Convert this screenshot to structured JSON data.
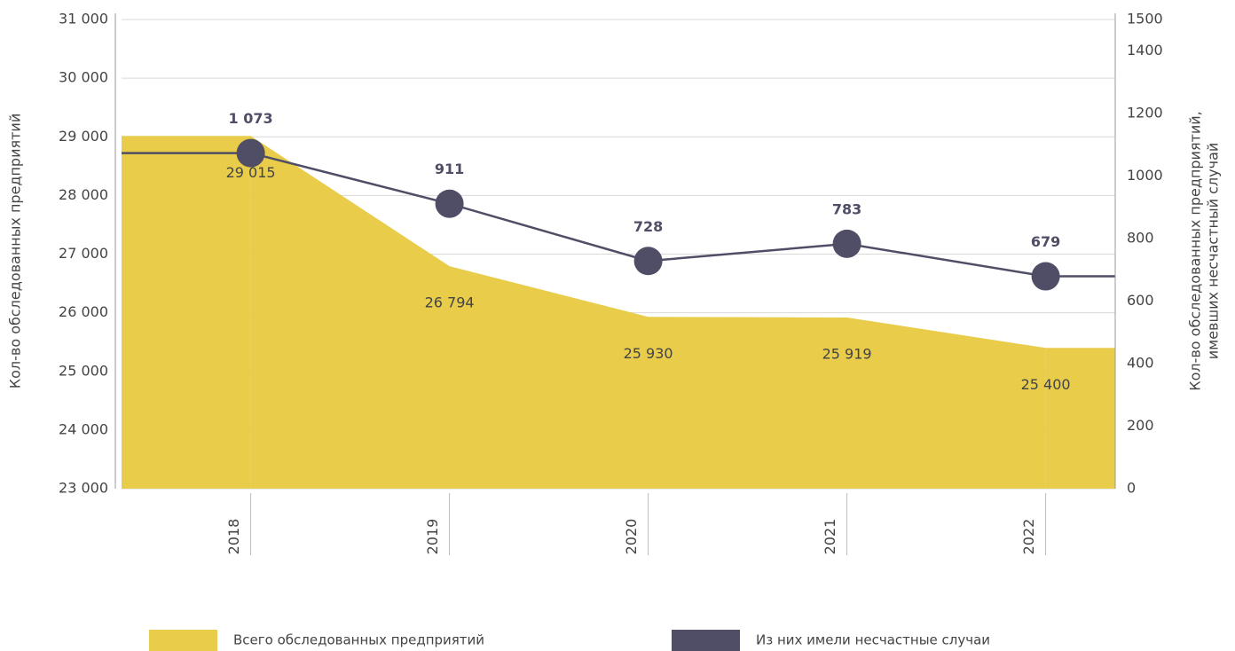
{
  "chart_data": {
    "type": "area-line",
    "ylabel": "Кол-во обследованных предприятий",
    "y2label": [
      "Кол-во обследованных предприятий,",
      "имевших несчастный случай"
    ],
    "categories": [
      "2018",
      "2019",
      "2020",
      "2021",
      "2022"
    ],
    "series": [
      {
        "name": "Всего обследованных предприятий",
        "type": "area",
        "color": "#e8cc4a",
        "values": [
          29015,
          26794,
          25930,
          25919,
          25400
        ],
        "value_labels": [
          "29 015",
          "26 794",
          "25 930",
          "25 919",
          "25 400"
        ]
      },
      {
        "name": "Из них имели несчастные случаи",
        "type": "line",
        "axis": "y2",
        "color": "#4f4e66",
        "values": [
          1073,
          911,
          728,
          783,
          679
        ],
        "value_labels": [
          "1 073",
          "911",
          "728",
          "783",
          "679"
        ]
      }
    ],
    "ylim": [
      23000,
      31000
    ],
    "yticks": [
      {
        "value": 23000,
        "label": "23 000"
      },
      {
        "value": 24000,
        "label": "24 000"
      },
      {
        "value": 25000,
        "label": "25 000"
      },
      {
        "value": 26000,
        "label": "26 000"
      },
      {
        "value": 27000,
        "label": "27 000"
      },
      {
        "value": 28000,
        "label": "28 000"
      },
      {
        "value": 29000,
        "label": "29 000"
      },
      {
        "value": 30000,
        "label": "30 000"
      },
      {
        "value": 31000,
        "label": "31 000"
      }
    ],
    "y2lim": [
      0,
      1500
    ],
    "y2ticks": [
      0,
      200,
      400,
      600,
      800,
      1000,
      1200,
      1400,
      1500
    ],
    "grid": true
  }
}
